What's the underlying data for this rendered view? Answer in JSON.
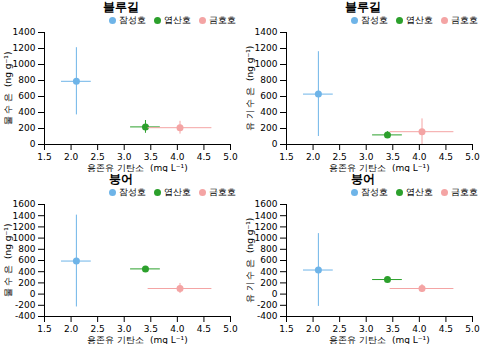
{
  "chart_data": [
    {
      "type": "scatter",
      "title": "블루길",
      "xlabel": "용존유 기탄소  (mg L⁻¹)",
      "ylabel": "물 수 은  (ng g⁻¹)",
      "xlim": [
        1.5,
        5.0
      ],
      "xticks": [
        1.5,
        {
          "value": 2,
          "label": "2.0"
        },
        2.5,
        {
          "value": 3,
          "label": "3.0"
        },
        3.5,
        {
          "value": 4,
          "label": "4.0"
        },
        4.5,
        {
          "value": 5,
          "label": "5.0"
        }
      ],
      "ylim": [
        0,
        1400
      ],
      "yticks": [
        0,
        200,
        400,
        600,
        800,
        1000,
        1200,
        1400
      ],
      "grid": false,
      "legend": "upper right",
      "marker": "circle",
      "series": [
        {
          "name": "잠성호",
          "color": "#6eb4e8",
          "x": [
            2.1
          ],
          "values": [
            790
          ],
          "xerr": [
            0.28
          ],
          "yerr": [
            420
          ]
        },
        {
          "name": "엽산호",
          "color": "#2ca02c",
          "x": [
            3.4
          ],
          "values": [
            220
          ],
          "xerr": [
            0.28
          ],
          "yerr": [
            80
          ]
        },
        {
          "name": "금호호",
          "color": "#f4a4a4",
          "x": [
            4.05
          ],
          "values": [
            210
          ],
          "xerr": [
            0.6
          ],
          "yerr": [
            80
          ]
        }
      ]
    },
    {
      "type": "scatter",
      "title": "블루길",
      "xlabel": "용존유 기탄소  (mg L⁻¹)",
      "ylabel": "유 기 수 은  (ng g⁻¹)",
      "xlim": [
        1.5,
        5.0
      ],
      "xticks": [
        1.5,
        {
          "value": 2,
          "label": "2.0"
        },
        2.5,
        {
          "value": 3,
          "label": "3.0"
        },
        3.5,
        {
          "value": 4,
          "label": "4.0"
        },
        4.5,
        {
          "value": 5,
          "label": "5.0"
        }
      ],
      "ylim": [
        0,
        1400
      ],
      "yticks": [
        0,
        200,
        400,
        600,
        800,
        1000,
        1200,
        1400
      ],
      "grid": false,
      "legend": "upper right",
      "marker": "circle",
      "series": [
        {
          "name": "잠성호",
          "color": "#6eb4e8",
          "x": [
            2.1
          ],
          "values": [
            630
          ],
          "xerr": [
            0.28
          ],
          "yerr": [
            530
          ]
        },
        {
          "name": "엽산호",
          "color": "#2ca02c",
          "x": [
            3.4
          ],
          "values": [
            120
          ],
          "xerr": [
            0.28
          ],
          "yerr": [
            40
          ]
        },
        {
          "name": "금호호",
          "color": "#f4a4a4",
          "x": [
            4.05
          ],
          "values": [
            160
          ],
          "xerr": [
            0.6
          ],
          "yerr": [
            160
          ]
        }
      ]
    },
    {
      "type": "scatter",
      "title": "붕어",
      "xlabel": "용존유 기탄소  (mg L⁻¹)",
      "ylabel": "물 수 은  (ng g⁻¹)",
      "xlim": [
        1.5,
        5.0
      ],
      "xticks": [
        1.5,
        {
          "value": 2,
          "label": "2.0"
        },
        2.5,
        {
          "value": 3,
          "label": "3.0"
        },
        3.5,
        {
          "value": 4,
          "label": "4.0"
        },
        4.5,
        {
          "value": 5,
          "label": "5.0"
        }
      ],
      "ylim": [
        -400,
        1600
      ],
      "yticks": [
        -400,
        -200,
        0,
        200,
        400,
        600,
        800,
        1000,
        1200,
        1400,
        1600
      ],
      "grid": false,
      "legend": "upper right",
      "marker": "circle",
      "series": [
        {
          "name": "잠성호",
          "color": "#6eb4e8",
          "x": [
            2.1
          ],
          "values": [
            590
          ],
          "xerr": [
            0.28
          ],
          "yerr": [
            820
          ]
        },
        {
          "name": "엽산호",
          "color": "#2ca02c",
          "x": [
            3.4
          ],
          "values": [
            450
          ],
          "xerr": [
            0.28
          ],
          "yerr": [
            40
          ]
        },
        {
          "name": "금호호",
          "color": "#f4a4a4",
          "x": [
            4.05
          ],
          "values": [
            100
          ],
          "xerr": [
            0.6
          ],
          "yerr": [
            90
          ]
        }
      ]
    },
    {
      "type": "scatter",
      "title": "붕어",
      "xlabel": "용존유 기탄소  (mg L⁻¹)",
      "ylabel": "유 기 수 은  (ng g⁻¹)",
      "xlim": [
        1.5,
        5.0
      ],
      "xticks": [
        1.5,
        {
          "value": 2,
          "label": "2.0"
        },
        2.5,
        {
          "value": 3,
          "label": "3.0"
        },
        3.5,
        {
          "value": 4,
          "label": "4.0"
        },
        4.5,
        {
          "value": 5,
          "label": "5.0"
        }
      ],
      "ylim": [
        -400,
        1600
      ],
      "yticks": [
        -400,
        -200,
        0,
        200,
        400,
        600,
        800,
        1000,
        1200,
        1400,
        1600
      ],
      "grid": false,
      "legend": "upper right",
      "marker": "circle",
      "series": [
        {
          "name": "잠성호",
          "color": "#6eb4e8",
          "x": [
            2.1
          ],
          "values": [
            430
          ],
          "xerr": [
            0.28
          ],
          "yerr": [
            650
          ]
        },
        {
          "name": "엽산호",
          "color": "#2ca02c",
          "x": [
            3.4
          ],
          "values": [
            260
          ],
          "xerr": [
            0.28
          ],
          "yerr": [
            40
          ]
        },
        {
          "name": "금호호",
          "color": "#f4a4a4",
          "x": [
            4.05
          ],
          "values": [
            100
          ],
          "xerr": [
            0.6
          ],
          "yerr": [
            70
          ]
        }
      ]
    }
  ]
}
